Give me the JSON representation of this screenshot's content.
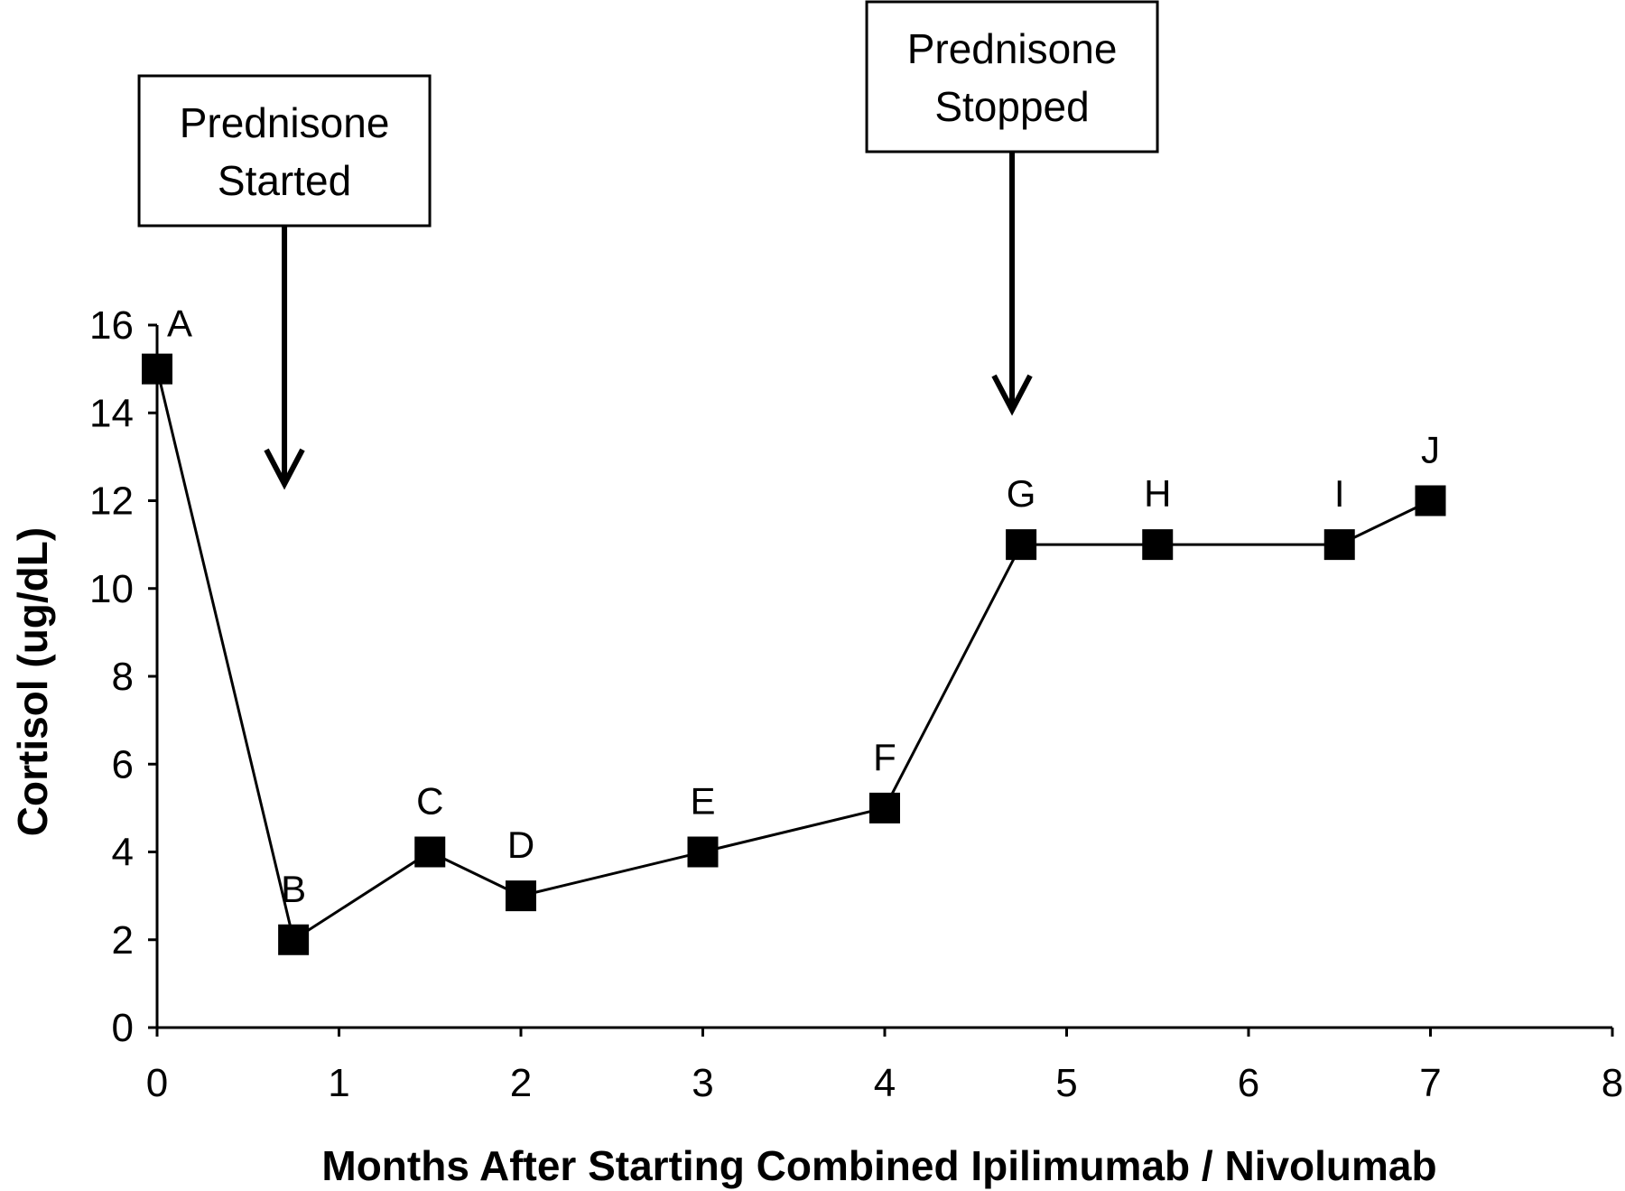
{
  "chart_data": {
    "type": "line",
    "title": "",
    "xlabel": "Months After Starting Combined Ipilimumab / Nivolumab",
    "ylabel": "Cortisol (ug/dL)",
    "xlim": [
      0,
      8
    ],
    "ylim": [
      0,
      16
    ],
    "x_ticks": [
      "0",
      "1",
      "2",
      "3",
      "4",
      "5",
      "6",
      "7",
      "8"
    ],
    "y_ticks": [
      "0",
      "2",
      "4",
      "6",
      "8",
      "10",
      "12",
      "14",
      "16"
    ],
    "grid": false,
    "legend": "none",
    "marker": "square",
    "color": "#000000",
    "series": [
      {
        "points": [
          {
            "label": "A",
            "x": 0,
            "y": 15
          },
          {
            "label": "B",
            "x": 0.75,
            "y": 2
          },
          {
            "label": "C",
            "x": 1.5,
            "y": 4
          },
          {
            "label": "D",
            "x": 2,
            "y": 3
          },
          {
            "label": "E",
            "x": 3,
            "y": 4
          },
          {
            "label": "F",
            "x": 4,
            "y": 5
          },
          {
            "label": "G",
            "x": 4.75,
            "y": 11
          },
          {
            "label": "H",
            "x": 5.5,
            "y": 11
          },
          {
            "label": "I",
            "x": 6.5,
            "y": 11
          },
          {
            "label": "J",
            "x": 7,
            "y": 12
          }
        ]
      }
    ],
    "annotations": [
      {
        "lines": [
          "Prednisone",
          "Started"
        ],
        "x": 0.7
      },
      {
        "lines": [
          "Prednisone",
          "Stopped"
        ],
        "x": 4.7
      }
    ]
  }
}
